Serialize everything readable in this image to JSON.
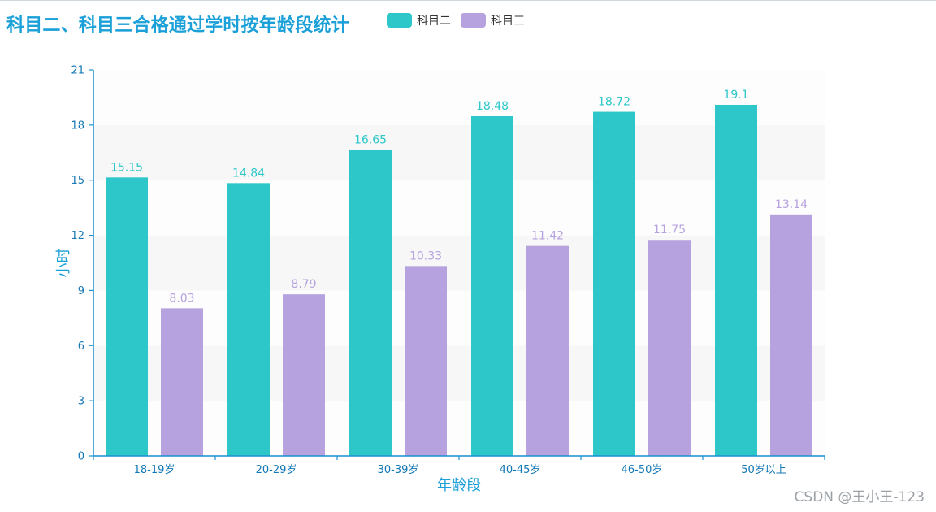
{
  "title": "科目二、科目三合格通过学时按年龄段统计",
  "watermark": "CSDN @王小王-123",
  "legend": [
    {
      "name": "科目二",
      "color": "#2ec7c9"
    },
    {
      "name": "科目三",
      "color": "#b6a2de"
    }
  ],
  "colors": {
    "axis": "#1a8fd0",
    "tick_text": "#1377b5",
    "axis_name": "#1ba0d8",
    "band": "#f7f7f7",
    "band_alt": "#fdfdfd"
  },
  "chart_data": {
    "type": "bar",
    "title": "科目二、科目三合格通过学时按年龄段统计",
    "xlabel": "年龄段",
    "ylabel": "小时",
    "categories": [
      "18-19岁",
      "20-29岁",
      "30-39岁",
      "40-45岁",
      "46-50岁",
      "50岁以上"
    ],
    "series": [
      {
        "name": "科目二",
        "color": "#2ec7c9",
        "values": [
          15.15,
          14.84,
          16.65,
          18.48,
          18.72,
          19.1
        ]
      },
      {
        "name": "科目三",
        "color": "#b6a2de",
        "values": [
          8.03,
          8.79,
          10.33,
          11.42,
          11.75,
          13.14
        ]
      }
    ],
    "ylim": [
      0,
      21
    ],
    "yticks": [
      0,
      3,
      6,
      9,
      12,
      15,
      18,
      21
    ],
    "grid": false,
    "split_area": true,
    "legend_position": "top"
  }
}
